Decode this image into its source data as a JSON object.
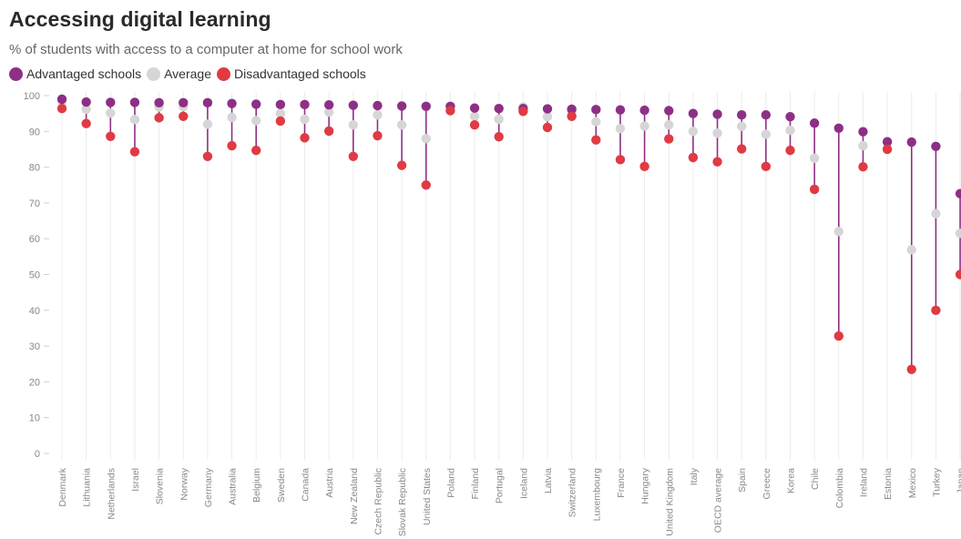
{
  "chart_data": {
    "type": "dumbbell",
    "title": "Accessing digital learning",
    "subtitle": "% of students with access to a computer at home for school work",
    "legend": [
      {
        "name": "Advantaged schools",
        "color": "#8e2f86"
      },
      {
        "name": "Average",
        "color": "#d6d6d6"
      },
      {
        "name": "Disadvantaged schools",
        "color": "#e03a43"
      }
    ],
    "ylim": [
      0,
      100
    ],
    "yticks": [
      0,
      10,
      20,
      30,
      40,
      50,
      60,
      70,
      80,
      90,
      100
    ],
    "grid": "vertical",
    "legend_position": "top-left",
    "categories": [
      "Denmark",
      "Lithuania",
      "Netherlands",
      "Israel",
      "Slovenia",
      "Norway",
      "Germany",
      "Australia",
      "Belgium",
      "Sweden",
      "Canada",
      "Austria",
      "New Zealand",
      "Czech Republic",
      "Slovak Republic",
      "United States",
      "Poland",
      "Finland",
      "Portugal",
      "Iceland",
      "Latvia",
      "Switzerland",
      "Luxembourg",
      "France",
      "Hungary",
      "United Kingdom",
      "Italy",
      "OECD average",
      "Spain",
      "Greece",
      "Korea",
      "Chile",
      "Colombia",
      "Ireland",
      "Estonia",
      "Mexico",
      "Turkey",
      "Japan"
    ],
    "series": [
      {
        "name": "Advantaged schools",
        "values": [
          99,
          98.2,
          98.1,
          98.1,
          98,
          98,
          98,
          97.8,
          97.6,
          97.5,
          97.5,
          97.4,
          97.3,
          97.2,
          97.1,
          97,
          97,
          96.5,
          96.4,
          96.4,
          96.3,
          96.2,
          96.1,
          96,
          95.9,
          95.8,
          95,
          94.8,
          94.6,
          94.6,
          94.1,
          92.3,
          90.9,
          89.9,
          87.1,
          87,
          85.8,
          72.6
        ]
      },
      {
        "name": "Average",
        "values": [
          98.5,
          96.2,
          95.1,
          93.3,
          96.8,
          96.9,
          92,
          93.9,
          93,
          95,
          93.4,
          95.4,
          91.8,
          94.6,
          91.8,
          88,
          97,
          94.2,
          93.4,
          96.8,
          94.1,
          95.6,
          92.7,
          90.8,
          91.5,
          91.8,
          90,
          89.5,
          91.4,
          89.2,
          90.3,
          82.5,
          62,
          86,
          86.9,
          56.9,
          67,
          61.5
        ]
      },
      {
        "name": "Disadvantaged schools",
        "values": [
          96.4,
          92.2,
          88.6,
          84.3,
          93.8,
          94.2,
          83,
          86,
          84.7,
          92.9,
          88.2,
          90.1,
          83,
          88.8,
          80.5,
          75,
          95.8,
          91.8,
          88.5,
          95.6,
          91.1,
          94.2,
          87.6,
          82.1,
          80.2,
          87.9,
          82.7,
          81.5,
          85.1,
          80.2,
          84.7,
          73.8,
          32.8,
          80.1,
          85,
          23.5,
          40,
          50
        ]
      }
    ]
  }
}
